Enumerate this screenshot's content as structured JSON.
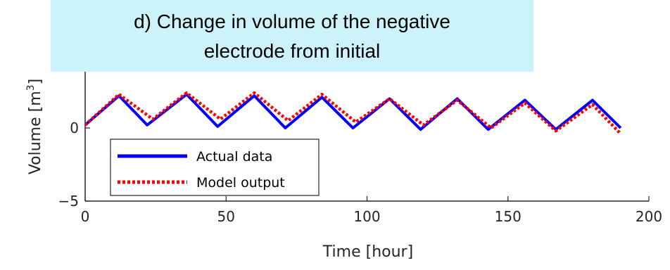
{
  "chart_data": {
    "type": "line",
    "title": [
      "d) Change in volume of the negative",
      "electrode from initial"
    ],
    "xlabel": "Time [hour]",
    "ylabel": "Volume [m",
    "ylabel_sup": "3",
    "ylabel_close": "]",
    "xlim": [
      0,
      200
    ],
    "ylim": [
      -5,
      5
    ],
    "xticks": [
      "0",
      "50",
      "100",
      "150",
      "200"
    ],
    "yticks": [
      "-5",
      "0"
    ],
    "grid": false,
    "legend_position": "bottom-left",
    "series": [
      {
        "name": "Actual data",
        "color": "#0000ff",
        "style": "solid",
        "x": [
          0,
          12,
          22,
          36,
          47,
          60,
          71,
          84,
          95,
          108,
          119,
          132,
          143,
          156,
          167,
          180,
          190
        ],
        "y": [
          0.2,
          2.2,
          0.2,
          2.3,
          0.1,
          2.2,
          0.0,
          2.1,
          0.0,
          2.0,
          -0.1,
          2.0,
          -0.1,
          1.9,
          -0.1,
          1.9,
          0.0
        ]
      },
      {
        "name": "Model output",
        "color": "#ff0000",
        "style": "dotted",
        "x": [
          0,
          12,
          24,
          36,
          48,
          60,
          72,
          84,
          96,
          108,
          120,
          132,
          144,
          156,
          167,
          180,
          190
        ],
        "y": [
          0.2,
          2.3,
          0.6,
          2.4,
          0.6,
          2.4,
          0.5,
          2.3,
          0.4,
          2.0,
          0.2,
          1.9,
          0.0,
          1.7,
          -0.2,
          1.6,
          -0.4
        ]
      }
    ]
  }
}
